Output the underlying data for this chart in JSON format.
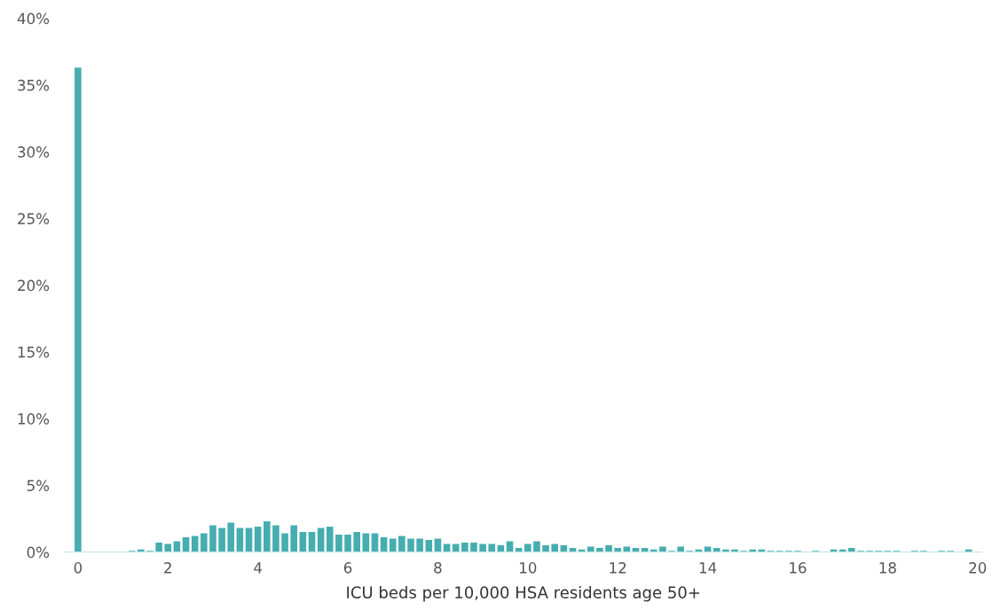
{
  "chart_data": {
    "type": "histogram",
    "xlabel": "ICU beds per 10,000 HSA residents age 50+",
    "bins": [
      -0.1,
      0.1,
      0.3,
      0.5,
      0.7,
      0.9,
      1.1,
      1.3,
      1.5,
      1.7,
      1.9,
      2.1,
      2.3,
      2.5,
      2.7,
      2.9,
      3.1,
      3.3,
      3.5,
      3.7,
      3.9,
      4.1,
      4.3,
      4.5,
      4.7,
      4.9,
      5.1,
      5.3,
      5.5,
      5.7,
      5.9,
      6.1,
      6.3,
      6.5,
      6.7,
      6.9,
      7.1,
      7.3,
      7.5,
      7.7,
      7.9,
      8.1,
      8.3,
      8.5,
      8.7,
      8.9,
      9.1,
      9.3,
      9.5,
      9.7,
      9.9,
      10.1,
      10.3,
      10.5,
      10.7,
      10.9,
      11.1,
      11.3,
      11.5,
      11.7,
      11.9,
      12.1,
      12.3,
      12.5,
      12.7,
      12.9,
      13.1,
      13.3,
      13.5,
      13.7,
      13.9,
      14.1,
      14.3,
      14.5,
      14.7,
      14.9,
      15.1,
      15.3,
      15.5,
      15.7,
      15.9,
      16.1,
      16.3,
      16.5,
      16.7,
      16.9,
      17.1,
      17.3,
      17.5,
      17.7,
      17.9,
      18.1,
      18.3,
      18.5,
      18.7,
      18.9,
      19.1,
      19.3,
      19.5,
      19.7,
      19.9,
      20.1
    ],
    "values": [
      36.3,
      0,
      0,
      0,
      0,
      0,
      0.1,
      0.2,
      0.1,
      0.7,
      0.6,
      0.8,
      1.1,
      1.2,
      1.4,
      2.0,
      1.8,
      2.2,
      1.8,
      1.8,
      1.9,
      2.3,
      2.0,
      1.4,
      2.0,
      1.5,
      1.5,
      1.8,
      1.9,
      1.3,
      1.3,
      1.5,
      1.4,
      1.4,
      1.1,
      1.0,
      1.2,
      1.0,
      1.0,
      0.9,
      1.0,
      0.6,
      0.6,
      0.7,
      0.7,
      0.6,
      0.6,
      0.5,
      0.8,
      0.3,
      0.6,
      0.8,
      0.5,
      0.6,
      0.5,
      0.3,
      0.2,
      0.4,
      0.3,
      0.5,
      0.3,
      0.4,
      0.3,
      0.3,
      0.2,
      0.4,
      0.1,
      0.4,
      0.1,
      0.2,
      0.4,
      0.3,
      0.2,
      0.2,
      0.1,
      0.2,
      0.2,
      0.1,
      0.1,
      0.1,
      0.1,
      0,
      0.1,
      0,
      0.2,
      0.2,
      0.3,
      0.1,
      0.1,
      0.1,
      0.1,
      0.1,
      0,
      0.1,
      0.1,
      0,
      0.1,
      0.1,
      0,
      0.2,
      0
    ],
    "color": "#46adb0",
    "xlim": [
      -0.3,
      20.1
    ],
    "xticks": [
      0,
      2,
      4,
      6,
      8,
      10,
      12,
      14,
      16,
      18,
      20
    ],
    "ylim": [
      0,
      40
    ],
    "yticks": [
      {
        "value": 0,
        "label": "0%"
      },
      {
        "value": 5,
        "label": "5%"
      },
      {
        "value": 10,
        "label": "10%"
      },
      {
        "value": 15,
        "label": "15%"
      },
      {
        "value": 20,
        "label": "20%"
      },
      {
        "value": 25,
        "label": "25%"
      },
      {
        "value": 30,
        "label": "30%"
      },
      {
        "value": 35,
        "label": "35%"
      },
      {
        "value": 40,
        "label": "40%"
      }
    ],
    "grid": false
  }
}
